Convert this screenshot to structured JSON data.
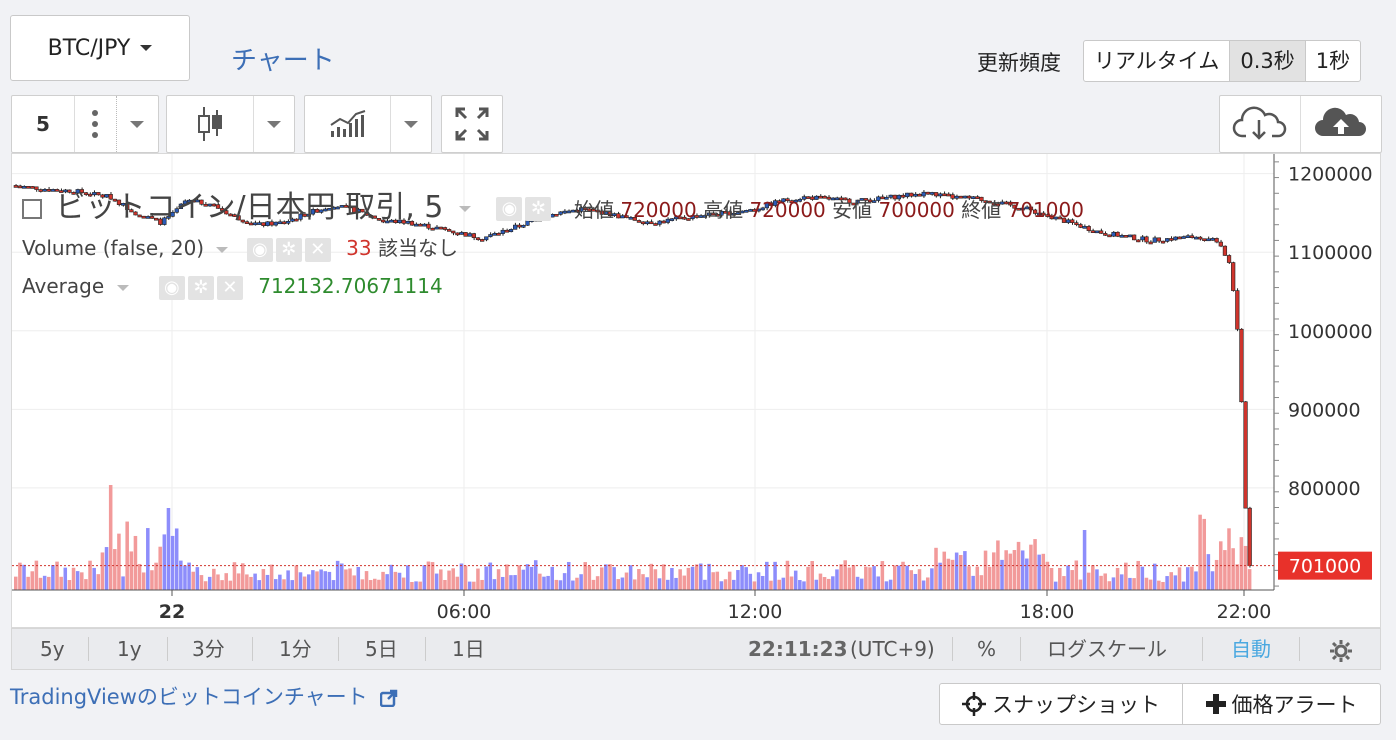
{
  "header": {
    "pair": "BTC/JPY",
    "chart_link": "チャート",
    "freq_label": "更新頻度",
    "freq_options": [
      "リアルタイム",
      "0.3秒",
      "1秒"
    ],
    "freq_active": 1
  },
  "toolbar": {
    "interval": "5"
  },
  "legend": {
    "title": "ビットコイン/日本円 取引, 5",
    "open_label": "始値",
    "open": "720000",
    "high_label": "高値",
    "high": "720000",
    "low_label": "安値",
    "low": "700000",
    "close_label": "終値",
    "close": "701000",
    "volume_label": "Volume (false, 20)",
    "volume_value": "33",
    "volume_na": "該当なし",
    "avg_label": "Average",
    "avg_value": "712132.70671114"
  },
  "chart_data": {
    "type": "candlestick",
    "price_ticks": [
      1200000,
      1100000,
      1000000,
      900000,
      800000
    ],
    "price_range": [
      670000,
      1225000
    ],
    "time_labels": [
      "22",
      "06:00",
      "12:00",
      "18:00",
      "22:00"
    ],
    "last_price": "701000",
    "price_path": [
      [
        0,
        1185000
      ],
      [
        0.03,
        1180000
      ],
      [
        0.05,
        1178000
      ],
      [
        0.08,
        1170000
      ],
      [
        0.1,
        1150000
      ],
      [
        0.12,
        1138000
      ],
      [
        0.13,
        1148000
      ],
      [
        0.14,
        1165000
      ],
      [
        0.16,
        1162000
      ],
      [
        0.18,
        1145000
      ],
      [
        0.2,
        1135000
      ],
      [
        0.22,
        1138000
      ],
      [
        0.24,
        1150000
      ],
      [
        0.26,
        1160000
      ],
      [
        0.28,
        1152000
      ],
      [
        0.3,
        1140000
      ],
      [
        0.32,
        1138000
      ],
      [
        0.34,
        1132000
      ],
      [
        0.36,
        1125000
      ],
      [
        0.38,
        1118000
      ],
      [
        0.4,
        1128000
      ],
      [
        0.42,
        1140000
      ],
      [
        0.44,
        1150000
      ],
      [
        0.46,
        1155000
      ],
      [
        0.48,
        1150000
      ],
      [
        0.5,
        1142000
      ],
      [
        0.52,
        1138000
      ],
      [
        0.54,
        1143000
      ],
      [
        0.56,
        1148000
      ],
      [
        0.58,
        1150000
      ],
      [
        0.6,
        1155000
      ],
      [
        0.62,
        1165000
      ],
      [
        0.64,
        1170000
      ],
      [
        0.66,
        1168000
      ],
      [
        0.68,
        1165000
      ],
      [
        0.7,
        1168000
      ],
      [
        0.72,
        1172000
      ],
      [
        0.74,
        1175000
      ],
      [
        0.76,
        1170000
      ],
      [
        0.78,
        1168000
      ],
      [
        0.8,
        1162000
      ],
      [
        0.82,
        1155000
      ],
      [
        0.84,
        1145000
      ],
      [
        0.86,
        1135000
      ],
      [
        0.88,
        1125000
      ],
      [
        0.9,
        1120000
      ],
      [
        0.92,
        1115000
      ],
      [
        0.94,
        1118000
      ],
      [
        0.96,
        1120000
      ],
      [
        0.975,
        1115000
      ],
      [
        0.985,
        1080000
      ],
      [
        0.99,
        1000000
      ],
      [
        0.995,
        860000
      ],
      [
        0.997,
        760000
      ],
      [
        1.0,
        701000
      ]
    ]
  },
  "right_actions": {
    "download_icon": "cloud-download-icon",
    "upload_icon": "cloud-upload-icon"
  },
  "bottom": {
    "ranges": [
      "5y",
      "1y",
      "3分",
      "1分",
      "5日",
      "1日"
    ],
    "time": "22:11:23",
    "tz": "(UTC+9)",
    "percent": "%",
    "log": "ログスケール",
    "auto": "自動",
    "settings_icon": "gear-icon"
  },
  "footer": {
    "tv_link": "TradingViewのビットコインチャート",
    "snapshot": "スナップショット",
    "alert": "価格アラート"
  }
}
